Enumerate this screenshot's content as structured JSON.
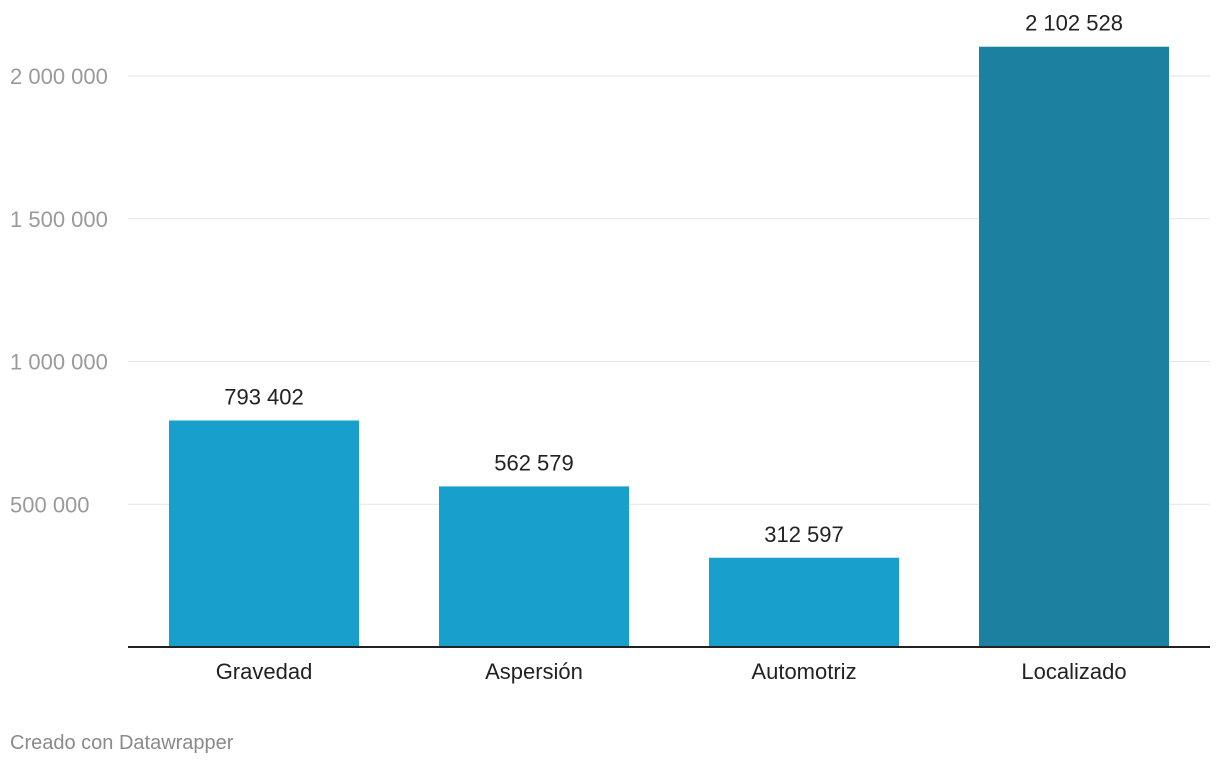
{
  "chart_data": {
    "type": "bar",
    "categories": [
      "Gravedad",
      "Aspersión",
      "Automotriz",
      "Localizado"
    ],
    "values": [
      793402,
      562579,
      312597,
      2102528
    ],
    "value_labels": [
      "793 402",
      "562 579",
      "312 597",
      "2 102 528"
    ],
    "y_ticks": [
      500000,
      1000000,
      1500000,
      2000000
    ],
    "y_tick_labels": [
      "500 000",
      "1 000 000",
      "1 500 000",
      "2 000 000"
    ],
    "ylim": [
      0,
      2000000
    ],
    "grid": true,
    "legend": "none",
    "title": "",
    "xlabel": "",
    "ylabel": ""
  },
  "colors": {
    "bar": "#199fcc",
    "bar_highlight": "#1c81a0",
    "highlight_category": "Localizado"
  },
  "footer": {
    "credit": "Creado con Datawrapper"
  }
}
